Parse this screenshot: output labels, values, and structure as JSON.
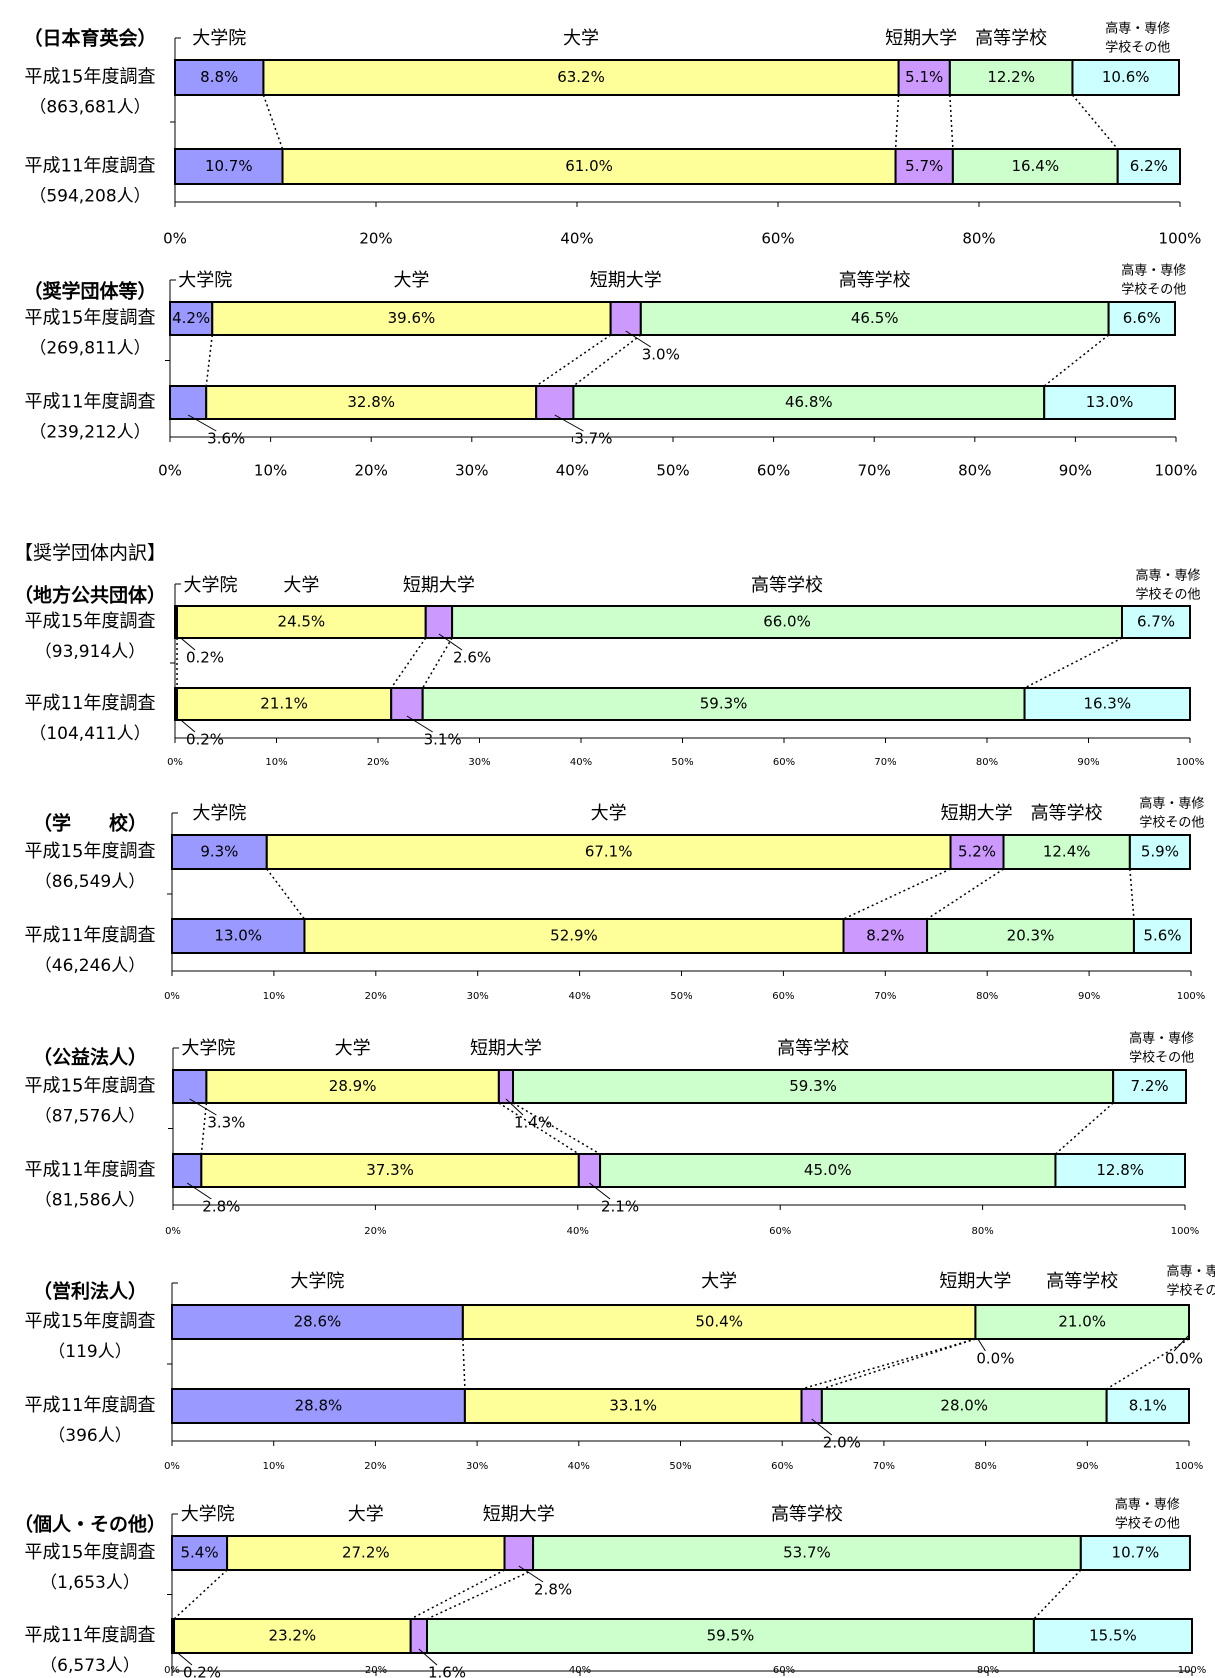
{
  "inner_section_title": "【奨学団体内訳】",
  "colors": {
    "大学院": "#9999ff",
    "大学": "#ffff99",
    "短期大学": "#cc99ff",
    "高等学校": "#ccffcc",
    "高専・専修学校その他": "#ccffff"
  },
  "chart_data": [
    {
      "type": "bar",
      "stacked": "horizontal-100%",
      "title": "（日本育英会）",
      "category_labels": [
        "大学院",
        "大学",
        "短期大学",
        "高等学校",
        "高専・専修\n学校その他"
      ],
      "x_ticks": [
        "0%",
        "20%",
        "40%",
        "60%",
        "80%",
        "100%"
      ],
      "xlim": [
        0,
        100
      ],
      "rows": [
        {
          "label": "平成15年度調査",
          "count": "（863,681人）",
          "values": [
            8.8,
            63.2,
            5.1,
            12.2,
            10.6
          ],
          "value_labels": [
            "8.8%",
            "63.2%",
            "5.1%",
            "12.2%",
            "10.6%"
          ]
        },
        {
          "label": "平成11年度調査",
          "count": "（594,208人）",
          "values": [
            10.7,
            61.0,
            5.7,
            16.4,
            6.2
          ],
          "value_labels": [
            "10.7%",
            "61.0%",
            "5.7%",
            "16.4%",
            "6.2%"
          ]
        }
      ]
    },
    {
      "type": "bar",
      "stacked": "horizontal-100%",
      "title": "（奨学団体等）",
      "category_labels": [
        "大学院",
        "大学",
        "短期大学",
        "高等学校",
        "高専・専修\n学校その他"
      ],
      "x_ticks": [
        "0%",
        "10%",
        "20%",
        "30%",
        "40%",
        "50%",
        "60%",
        "70%",
        "80%",
        "90%",
        "100%"
      ],
      "xlim": [
        0,
        100
      ],
      "rows": [
        {
          "label": "平成15年度調査",
          "count": "（269,811人）",
          "values": [
            4.2,
            39.6,
            3.0,
            46.5,
            6.6
          ],
          "value_labels": [
            "4.2%",
            "39.6%",
            "3.0%",
            "46.5%",
            "6.6%"
          ]
        },
        {
          "label": "平成11年度調査",
          "count": "（239,212人）",
          "values": [
            3.6,
            32.8,
            3.7,
            46.8,
            13.0
          ],
          "value_labels": [
            "3.6%",
            "32.8%",
            "3.7%",
            "46.8%",
            "13.0%"
          ]
        }
      ]
    },
    {
      "type": "bar",
      "stacked": "horizontal-100%",
      "title": "（地方公共団体）",
      "category_labels": [
        "大学院",
        "大学",
        "短期大学",
        "高等学校",
        "高専・専修\n学校その他"
      ],
      "x_ticks": [
        "0%",
        "10%",
        "20%",
        "30%",
        "40%",
        "50%",
        "60%",
        "70%",
        "80%",
        "90%",
        "100%"
      ],
      "xlim": [
        0,
        100
      ],
      "rows": [
        {
          "label": "平成15年度調査",
          "count": "（93,914人）",
          "values": [
            0.2,
            24.5,
            2.6,
            66.0,
            6.7
          ],
          "value_labels": [
            "0.2%",
            "24.5%",
            "2.6%",
            "66.0%",
            "6.7%"
          ]
        },
        {
          "label": "平成11年度調査",
          "count": "（104,411人）",
          "values": [
            0.2,
            21.1,
            3.1,
            59.3,
            16.3
          ],
          "value_labels": [
            "0.2%",
            "21.1%",
            "3.1%",
            "59.3%",
            "16.3%"
          ]
        }
      ]
    },
    {
      "type": "bar",
      "stacked": "horizontal-100%",
      "title": "（学　　校）",
      "category_labels": [
        "大学院",
        "大学",
        "短期大学",
        "高等学校",
        "高専・専修\n学校その他"
      ],
      "x_ticks": [
        "0%",
        "10%",
        "20%",
        "30%",
        "40%",
        "50%",
        "60%",
        "70%",
        "80%",
        "90%",
        "100%"
      ],
      "xlim": [
        0,
        100
      ],
      "rows": [
        {
          "label": "平成15年度調査",
          "count": "（86,549人）",
          "values": [
            9.3,
            67.1,
            5.2,
            12.4,
            5.9
          ],
          "value_labels": [
            "9.3%",
            "67.1%",
            "5.2%",
            "12.4%",
            "5.9%"
          ]
        },
        {
          "label": "平成11年度調査",
          "count": "（46,246人）",
          "values": [
            13.0,
            52.9,
            8.2,
            20.3,
            5.6
          ],
          "value_labels": [
            "13.0%",
            "52.9%",
            "8.2%",
            "20.3%",
            "5.6%"
          ]
        }
      ]
    },
    {
      "type": "bar",
      "stacked": "horizontal-100%",
      "title": "（公益法人）",
      "category_labels": [
        "大学院",
        "大学",
        "短期大学",
        "高等学校",
        "高専・専修\n学校その他"
      ],
      "x_ticks": [
        "0%",
        "20%",
        "40%",
        "60%",
        "80%",
        "100%"
      ],
      "xlim": [
        0,
        100
      ],
      "rows": [
        {
          "label": "平成15年度調査",
          "count": "（87,576人）",
          "values": [
            3.3,
            28.9,
            1.4,
            59.3,
            7.2
          ],
          "value_labels": [
            "3.3%",
            "28.9%",
            "1.4%",
            "59.3%",
            "7.2%"
          ]
        },
        {
          "label": "平成11年度調査",
          "count": "（81,586人）",
          "values": [
            2.8,
            37.3,
            2.1,
            45.0,
            12.8
          ],
          "value_labels": [
            "2.8%",
            "37.3%",
            "2.1%",
            "45.0%",
            "12.8%"
          ]
        }
      ]
    },
    {
      "type": "bar",
      "stacked": "horizontal-100%",
      "title": "（営利法人）",
      "category_labels": [
        "大学院",
        "大学",
        "短期大学",
        "高等学校",
        "高専・専修\n学校その他"
      ],
      "x_ticks": [
        "0%",
        "10%",
        "20%",
        "30%",
        "40%",
        "50%",
        "60%",
        "70%",
        "80%",
        "90%",
        "100%"
      ],
      "xlim": [
        0,
        100
      ],
      "rows": [
        {
          "label": "平成15年度調査",
          "count": "（119人）",
          "values": [
            28.6,
            50.4,
            0.0,
            21.0,
            0.0
          ],
          "value_labels": [
            "28.6%",
            "50.4%",
            "0.0%",
            "21.0%",
            "0.0%"
          ]
        },
        {
          "label": "平成11年度調査",
          "count": "（396人）",
          "values": [
            28.8,
            33.1,
            2.0,
            28.0,
            8.1
          ],
          "value_labels": [
            "28.8%",
            "33.1%",
            "2.0%",
            "28.0%",
            "8.1%"
          ]
        }
      ]
    },
    {
      "type": "bar",
      "stacked": "horizontal-100%",
      "title": "（個人・その他）",
      "category_labels": [
        "大学院",
        "大学",
        "短期大学",
        "高等学校",
        "高専・専修\n学校その他"
      ],
      "x_ticks": [
        "0%",
        "20%",
        "40%",
        "60%",
        "80%",
        "100%"
      ],
      "xlim": [
        0,
        100
      ],
      "rows": [
        {
          "label": "平成15年度調査",
          "count": "（1,653人）",
          "values": [
            5.4,
            27.2,
            2.8,
            53.7,
            10.7
          ],
          "value_labels": [
            "5.4%",
            "27.2%",
            "2.8%",
            "53.7%",
            "10.7%"
          ]
        },
        {
          "label": "平成11年度調査",
          "count": "（6,573人）",
          "values": [
            0.2,
            23.2,
            1.6,
            59.5,
            15.5
          ],
          "value_labels": [
            "0.2%",
            "23.2%",
            "1.6%",
            "59.5%",
            "15.5%"
          ]
        }
      ]
    }
  ]
}
